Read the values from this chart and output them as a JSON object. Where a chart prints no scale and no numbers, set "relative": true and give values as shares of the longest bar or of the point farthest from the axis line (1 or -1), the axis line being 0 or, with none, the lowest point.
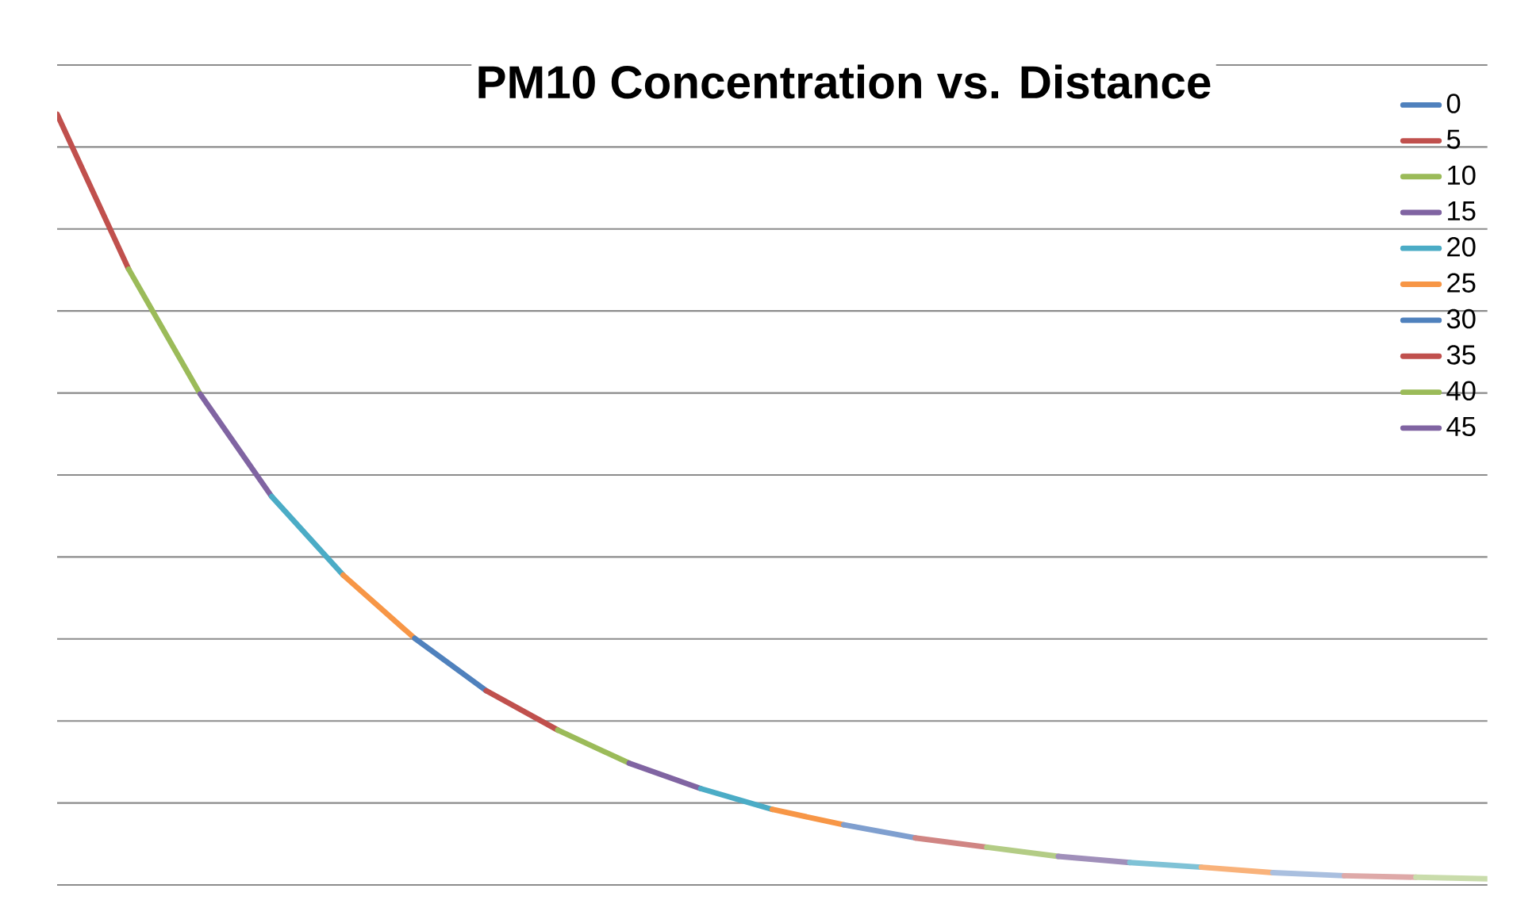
{
  "chart_data": {
    "type": "line",
    "title": "PM10 Concentration vs. Distance",
    "relative": true,
    "grid": "y",
    "legend": "right",
    "marker": "none",
    "line_style": "solid",
    "categories": [
      null,
      null,
      null,
      null,
      null,
      null,
      null,
      null,
      null,
      null,
      null,
      null,
      null,
      null,
      null,
      null,
      null,
      null,
      null,
      null,
      null
    ],
    "series": [
      {
        "name": "0",
        "color": "#4f81bd",
        "values": [
          null,
          null,
          null,
          null,
          null,
          null,
          null,
          null,
          null,
          null,
          null,
          null,
          null,
          null,
          null,
          null,
          null,
          null,
          null,
          null,
          null
        ]
      },
      {
        "name": "5",
        "color": "#c0504d",
        "values": [
          1.0,
          0.799,
          null,
          null,
          null,
          null,
          null,
          null,
          null,
          null,
          null,
          null,
          null,
          null,
          null,
          null,
          null,
          null,
          null,
          null,
          null
        ]
      },
      {
        "name": "10",
        "color": "#9bbb59",
        "values": [
          null,
          0.799,
          0.637,
          null,
          null,
          null,
          null,
          null,
          null,
          null,
          null,
          null,
          null,
          null,
          null,
          null,
          null,
          null,
          null,
          null,
          null
        ]
      },
      {
        "name": "15",
        "color": "#8064a2",
        "values": [
          null,
          null,
          0.637,
          0.504,
          null,
          null,
          null,
          null,
          null,
          null,
          null,
          null,
          null,
          null,
          null,
          null,
          null,
          null,
          null,
          null,
          null
        ]
      },
      {
        "name": "20",
        "color": "#4bacc6",
        "values": [
          null,
          null,
          null,
          0.504,
          0.402,
          null,
          null,
          null,
          null,
          null,
          null,
          null,
          null,
          null,
          null,
          null,
          null,
          null,
          null,
          null,
          null
        ]
      },
      {
        "name": "25",
        "color": "#f79646",
        "values": [
          null,
          null,
          null,
          null,
          0.402,
          0.32,
          null,
          null,
          null,
          null,
          null,
          null,
          null,
          null,
          null,
          null,
          null,
          null,
          null,
          null,
          null
        ]
      },
      {
        "name": "30",
        "color": "#4f81bd",
        "values": [
          null,
          null,
          null,
          null,
          null,
          0.32,
          0.252,
          null,
          null,
          null,
          null,
          null,
          null,
          null,
          null,
          null,
          null,
          null,
          null,
          null,
          null
        ]
      },
      {
        "name": "35",
        "color": "#c0504d",
        "values": [
          null,
          null,
          null,
          null,
          null,
          null,
          0.252,
          0.201,
          null,
          null,
          null,
          null,
          null,
          null,
          null,
          null,
          null,
          null,
          null,
          null,
          null
        ]
      },
      {
        "name": "40",
        "color": "#9bbb59",
        "values": [
          null,
          null,
          null,
          null,
          null,
          null,
          null,
          0.201,
          0.158,
          null,
          null,
          null,
          null,
          null,
          null,
          null,
          null,
          null,
          null,
          null,
          null
        ]
      },
      {
        "name": "45",
        "color": "#8064a2",
        "values": [
          null,
          null,
          null,
          null,
          null,
          null,
          null,
          null,
          0.158,
          0.125,
          null,
          null,
          null,
          null,
          null,
          null,
          null,
          null,
          null,
          null,
          null
        ]
      },
      {
        "color": "#4bacc6",
        "values": [
          null,
          null,
          null,
          null,
          null,
          null,
          null,
          null,
          null,
          0.125,
          0.098,
          null,
          null,
          null,
          null,
          null,
          null,
          null,
          null,
          null,
          null
        ]
      },
      {
        "color": "#f79646",
        "values": [
          null,
          null,
          null,
          null,
          null,
          null,
          null,
          null,
          null,
          null,
          0.098,
          0.078,
          null,
          null,
          null,
          null,
          null,
          null,
          null,
          null,
          null
        ]
      },
      {
        "color": "#7f9fcf",
        "values": [
          null,
          null,
          null,
          null,
          null,
          null,
          null,
          null,
          null,
          null,
          null,
          0.078,
          0.061,
          null,
          null,
          null,
          null,
          null,
          null,
          null,
          null
        ]
      },
      {
        "color": "#d08583",
        "values": [
          null,
          null,
          null,
          null,
          null,
          null,
          null,
          null,
          null,
          null,
          null,
          null,
          0.061,
          0.049,
          null,
          null,
          null,
          null,
          null,
          null,
          null
        ]
      },
      {
        "color": "#b3cc85",
        "values": [
          null,
          null,
          null,
          null,
          null,
          null,
          null,
          null,
          null,
          null,
          null,
          null,
          null,
          0.049,
          0.037,
          null,
          null,
          null,
          null,
          null,
          null
        ]
      },
      {
        "color": "#a08fba",
        "values": [
          null,
          null,
          null,
          null,
          null,
          null,
          null,
          null,
          null,
          null,
          null,
          null,
          null,
          null,
          0.037,
          0.029,
          null,
          null,
          null,
          null,
          null
        ]
      },
      {
        "color": "#7fc2d6",
        "values": [
          null,
          null,
          null,
          null,
          null,
          null,
          null,
          null,
          null,
          null,
          null,
          null,
          null,
          null,
          null,
          0.029,
          0.023,
          null,
          null,
          null,
          null
        ]
      },
      {
        "color": "#f9b27a",
        "values": [
          null,
          null,
          null,
          null,
          null,
          null,
          null,
          null,
          null,
          null,
          null,
          null,
          null,
          null,
          null,
          null,
          0.023,
          0.016,
          null,
          null,
          null
        ]
      },
      {
        "color": "#a9bfdf",
        "values": [
          null,
          null,
          null,
          null,
          null,
          null,
          null,
          null,
          null,
          null,
          null,
          null,
          null,
          null,
          null,
          null,
          null,
          0.016,
          0.012,
          null,
          null
        ]
      },
      {
        "color": "#dea9a8",
        "values": [
          null,
          null,
          null,
          null,
          null,
          null,
          null,
          null,
          null,
          null,
          null,
          null,
          null,
          null,
          null,
          null,
          null,
          null,
          0.012,
          0.01,
          null
        ]
      },
      {
        "color": "#c9dcab",
        "values": [
          null,
          null,
          null,
          null,
          null,
          null,
          null,
          null,
          null,
          null,
          null,
          null,
          null,
          null,
          null,
          null,
          null,
          null,
          null,
          0.01,
          0.008
        ]
      }
    ]
  }
}
